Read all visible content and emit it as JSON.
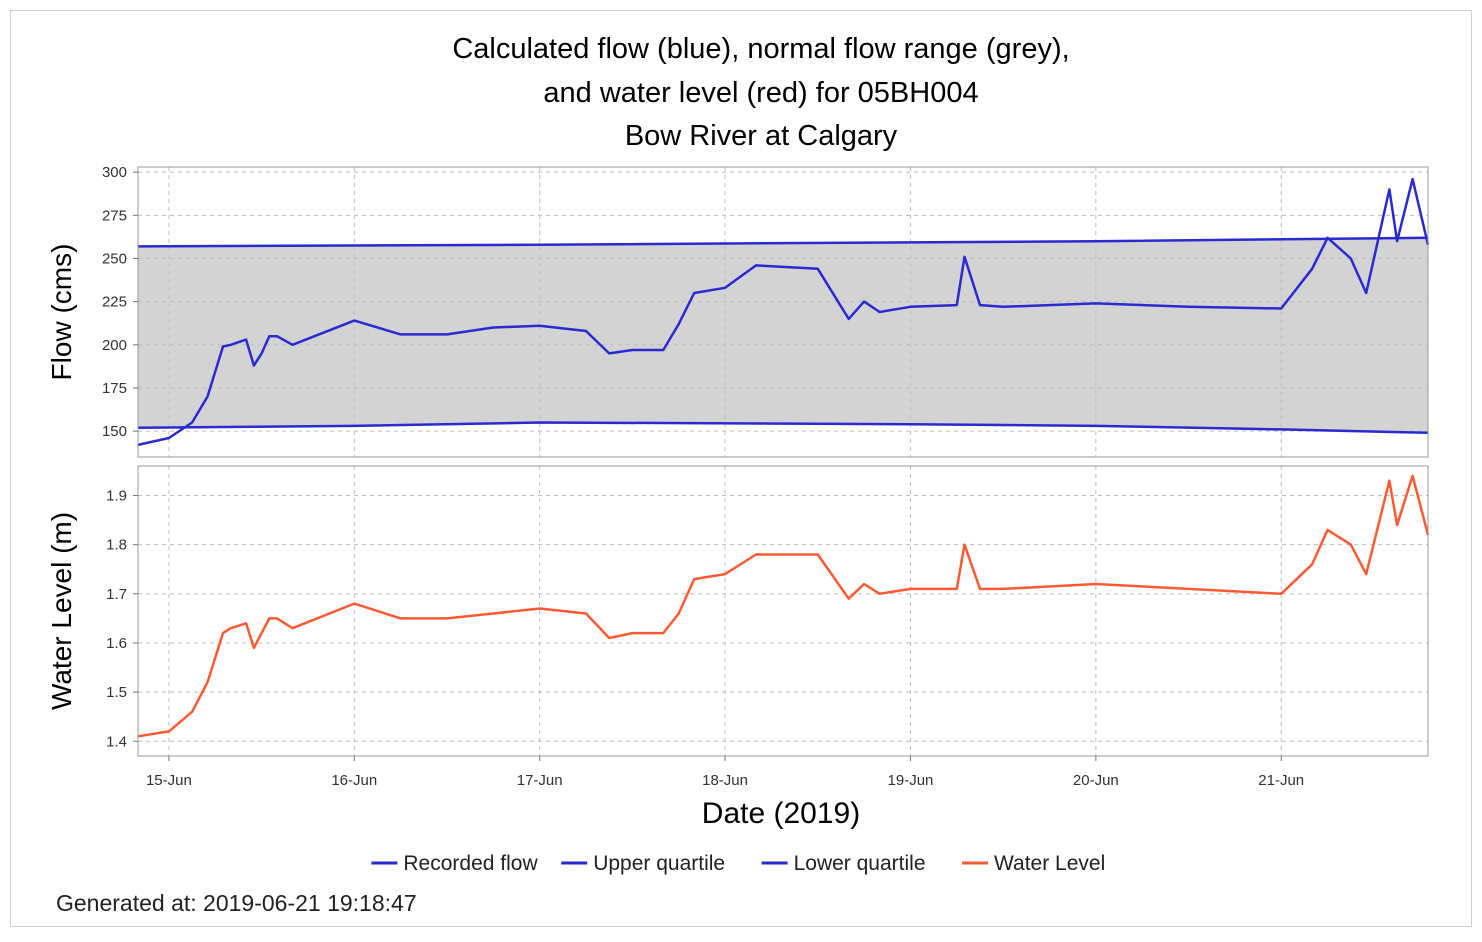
{
  "chart": {
    "title_lines": [
      "Calculated flow (blue), normal flow range (grey),",
      "and water level (red) for 05BH004",
      "Bow River at Calgary"
    ],
    "generated_text": "Generated at: 2019-06-21 19:18:47"
  },
  "colors": {
    "flow": "#2a2ad2",
    "quartile": "#2a2ad2",
    "water_level": "#ff5a33",
    "normal_range_fill": "#d3d3d3",
    "grid": "#bdbdbd",
    "axis": "#999999"
  },
  "chart_data": {
    "type": "line",
    "xlabel": "Date (2019)",
    "xrange": [
      "2019-06-14 20:00",
      "2019-06-21 19:00"
    ],
    "x_ticks": [
      "15-Jun",
      "16-Jun",
      "17-Jun",
      "18-Jun",
      "19-Jun",
      "20-Jun",
      "21-Jun"
    ],
    "x_tick_dates": [
      "2019-06-15",
      "2019-06-16",
      "2019-06-17",
      "2019-06-18",
      "2019-06-19",
      "2019-06-20",
      "2019-06-21"
    ],
    "grid": true,
    "legend_position": "bottom",
    "legend": [
      "Recorded flow",
      "Upper quartile",
      "Lower quartile",
      "Water Level"
    ],
    "panels": [
      {
        "ylabel": "Flow (cms)",
        "ylim": [
          135,
          303
        ],
        "yticks": [
          150,
          175,
          200,
          225,
          250,
          275,
          300
        ],
        "shaded_between": [
          "Upper quartile",
          "Lower quartile"
        ],
        "series": [
          {
            "name": "Upper quartile",
            "x": [
              "2019-06-14 20:00",
              "2019-06-17 00:00",
              "2019-06-20 00:00",
              "2019-06-21 19:00"
            ],
            "values": [
              257,
              258,
              260,
              262
            ]
          },
          {
            "name": "Lower quartile",
            "x": [
              "2019-06-14 20:00",
              "2019-06-16 00:00",
              "2019-06-17 00:00",
              "2019-06-19 00:00",
              "2019-06-20 00:00",
              "2019-06-21 00:00",
              "2019-06-21 19:00"
            ],
            "values": [
              152,
              153,
              155,
              154,
              153,
              151,
              149
            ]
          },
          {
            "name": "Recorded flow",
            "x": [
              "2019-06-14 20:00",
              "2019-06-15 00:00",
              "2019-06-15 03:00",
              "2019-06-15 05:00",
              "2019-06-15 07:00",
              "2019-06-15 08:00",
              "2019-06-15 10:00",
              "2019-06-15 11:00",
              "2019-06-15 12:00",
              "2019-06-15 13:00",
              "2019-06-15 14:00",
              "2019-06-15 16:00",
              "2019-06-16 00:00",
              "2019-06-16 06:00",
              "2019-06-16 12:00",
              "2019-06-16 18:00",
              "2019-06-17 00:00",
              "2019-06-17 06:00",
              "2019-06-17 09:00",
              "2019-06-17 12:00",
              "2019-06-17 16:00",
              "2019-06-17 18:00",
              "2019-06-17 20:00",
              "2019-06-18 00:00",
              "2019-06-18 04:00",
              "2019-06-18 12:00",
              "2019-06-18 16:00",
              "2019-06-18 18:00",
              "2019-06-18 20:00",
              "2019-06-19 00:00",
              "2019-06-19 06:00",
              "2019-06-19 07:00",
              "2019-06-19 09:00",
              "2019-06-19 12:00",
              "2019-06-20 00:00",
              "2019-06-20 12:00",
              "2019-06-21 00:00",
              "2019-06-21 04:00",
              "2019-06-21 06:00",
              "2019-06-21 09:00",
              "2019-06-21 11:00",
              "2019-06-21 14:00",
              "2019-06-21 15:00",
              "2019-06-21 17:00",
              "2019-06-21 19:00"
            ],
            "values": [
              142,
              146,
              155,
              170,
              199,
              200,
              203,
              188,
              195,
              205,
              205,
              200,
              214,
              206,
              206,
              210,
              211,
              208,
              195,
              197,
              197,
              212,
              230,
              233,
              246,
              244,
              215,
              225,
              219,
              222,
              223,
              251,
              223,
              222,
              224,
              222,
              221,
              244,
              262,
              250,
              230,
              290,
              260,
              296,
              258
            ]
          }
        ]
      },
      {
        "ylabel": "Water Level (m)",
        "ylim": [
          1.37,
          1.96
        ],
        "yticks": [
          1.4,
          1.5,
          1.6,
          1.7,
          1.8,
          1.9
        ],
        "series": [
          {
            "name": "Water Level",
            "x": [
              "2019-06-14 20:00",
              "2019-06-15 00:00",
              "2019-06-15 03:00",
              "2019-06-15 05:00",
              "2019-06-15 07:00",
              "2019-06-15 08:00",
              "2019-06-15 10:00",
              "2019-06-15 11:00",
              "2019-06-15 12:00",
              "2019-06-15 13:00",
              "2019-06-15 14:00",
              "2019-06-15 16:00",
              "2019-06-16 00:00",
              "2019-06-16 06:00",
              "2019-06-16 12:00",
              "2019-06-16 18:00",
              "2019-06-17 00:00",
              "2019-06-17 06:00",
              "2019-06-17 09:00",
              "2019-06-17 12:00",
              "2019-06-17 16:00",
              "2019-06-17 18:00",
              "2019-06-17 20:00",
              "2019-06-18 00:00",
              "2019-06-18 04:00",
              "2019-06-18 12:00",
              "2019-06-18 16:00",
              "2019-06-18 18:00",
              "2019-06-18 20:00",
              "2019-06-19 00:00",
              "2019-06-19 06:00",
              "2019-06-19 07:00",
              "2019-06-19 09:00",
              "2019-06-19 12:00",
              "2019-06-20 00:00",
              "2019-06-20 12:00",
              "2019-06-21 00:00",
              "2019-06-21 04:00",
              "2019-06-21 06:00",
              "2019-06-21 09:00",
              "2019-06-21 11:00",
              "2019-06-21 14:00",
              "2019-06-21 15:00",
              "2019-06-21 17:00",
              "2019-06-21 19:00"
            ],
            "values": [
              1.41,
              1.42,
              1.46,
              1.52,
              1.62,
              1.63,
              1.64,
              1.59,
              1.62,
              1.65,
              1.65,
              1.63,
              1.68,
              1.65,
              1.65,
              1.66,
              1.67,
              1.66,
              1.61,
              1.62,
              1.62,
              1.66,
              1.73,
              1.74,
              1.78,
              1.78,
              1.69,
              1.72,
              1.7,
              1.71,
              1.71,
              1.8,
              1.71,
              1.71,
              1.72,
              1.71,
              1.7,
              1.76,
              1.83,
              1.8,
              1.74,
              1.93,
              1.84,
              1.94,
              1.82
            ]
          }
        ]
      }
    ]
  }
}
